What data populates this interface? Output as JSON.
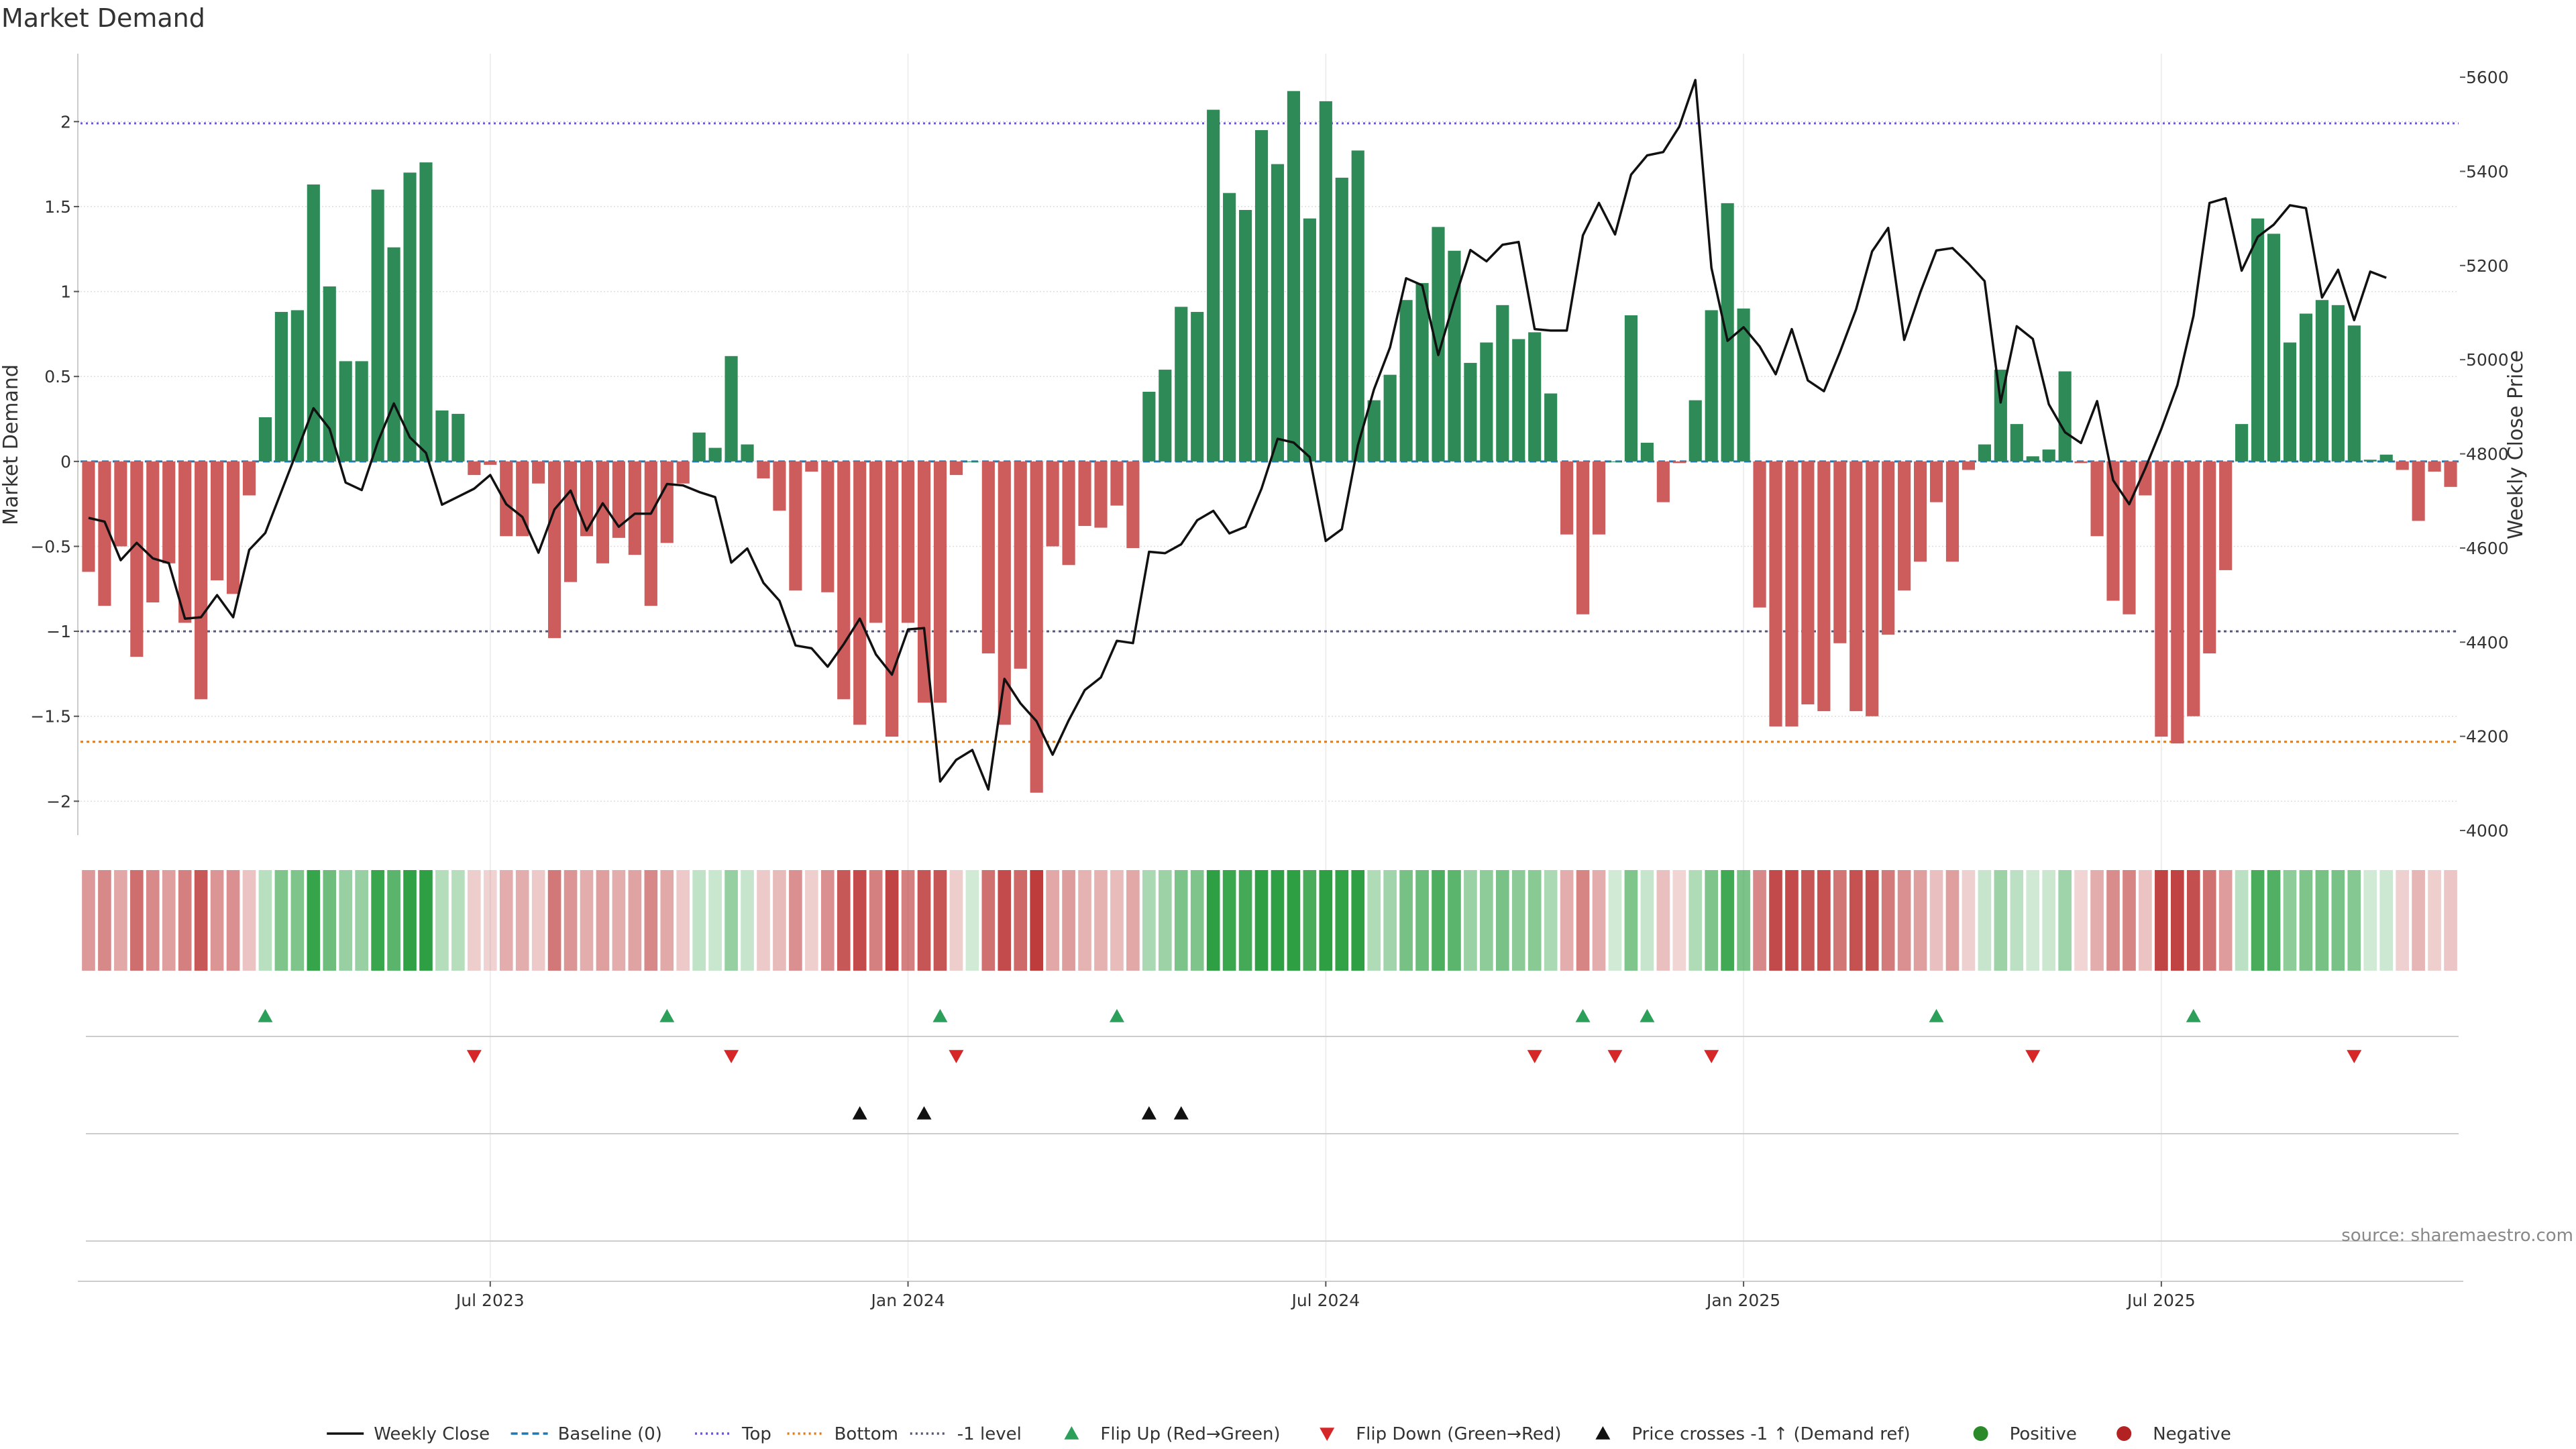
{
  "chart_data": {
    "type": "bar",
    "title": "Market Demand",
    "left_axis": {
      "label": "Market Demand",
      "ylim": [
        -2.2,
        2.4
      ],
      "ticks": [
        2,
        1.5,
        1,
        0.5,
        0,
        -0.5,
        -1,
        -1.5,
        -2
      ],
      "tick_labels": [
        "2",
        "1.5",
        "1",
        "0.5",
        "0",
        "−0.5",
        "−1",
        "−1.5",
        "−2"
      ]
    },
    "right_axis": {
      "label": "Weekly Close Price",
      "ylim": [
        3990,
        5650
      ],
      "ticks": [
        5600,
        5400,
        5200,
        5000,
        4800,
        4600,
        4400,
        4200,
        4000
      ],
      "tick_labels": [
        "5600",
        "5400",
        "5200",
        "5000",
        "4800",
        "4600",
        "4400",
        "4200",
        "4000"
      ]
    },
    "x_axis": {
      "type": "weekly",
      "first_week": "2023-01-06",
      "tick_week_index": [
        25,
        51,
        77,
        103,
        129
      ],
      "tick_labels": [
        "Jul 2023",
        "Jan 2024",
        "Jul 2024",
        "Jan 2025",
        "Jul 2025"
      ]
    },
    "reference_lines": {
      "top": 1.99,
      "bottom": -1.65,
      "minus_one": -1,
      "baseline": 0
    },
    "demand": [
      -0.65,
      -0.85,
      -0.5,
      -1.15,
      -0.83,
      -0.6,
      -0.95,
      -1.4,
      -0.7,
      -0.78,
      -0.2,
      0.26,
      0.88,
      0.89,
      1.63,
      1.03,
      0.59,
      0.59,
      1.6,
      1.26,
      1.7,
      1.76,
      0.3,
      0.28,
      -0.08,
      -0.02,
      -0.44,
      -0.44,
      -0.13,
      -1.04,
      -0.71,
      -0.44,
      -0.6,
      -0.45,
      -0.55,
      -0.85,
      -0.48,
      -0.13,
      0.17,
      0.08,
      0.62,
      0.1,
      -0.1,
      -0.29,
      -0.76,
      -0.06,
      -0.77,
      -1.4,
      -1.55,
      -0.95,
      -1.62,
      -0.95,
      -1.42,
      -1.42,
      -0.08,
      0,
      -1.13,
      -1.55,
      -1.22,
      -1.95,
      -0.5,
      -0.61,
      -0.38,
      -0.39,
      -0.26,
      -0.51,
      0.41,
      0.54,
      0.91,
      0.88,
      2.07,
      1.58,
      1.48,
      1.95,
      1.75,
      2.18,
      1.43,
      2.12,
      1.67,
      1.83,
      0.36,
      0.51,
      0.95,
      1.05,
      1.38,
      1.24,
      0.58,
      0.7,
      0.92,
      0.72,
      0.76,
      0.4,
      -0.43,
      -0.9,
      -0.43,
      0,
      0.86,
      0.11,
      -0.24,
      -0.01,
      0.36,
      0.89,
      1.52,
      0.9,
      -0.86,
      -1.56,
      -1.56,
      -1.43,
      -1.47,
      -1.07,
      -1.47,
      -1.5,
      -1.02,
      -0.76,
      -0.59,
      -0.24,
      -0.59,
      -0.05,
      0.1,
      0.54,
      0.22,
      0.03,
      0.07,
      0.53,
      -0.01,
      -0.44,
      -0.82,
      -0.9,
      -0.2,
      -1.62,
      -1.66,
      -1.5,
      -1.13,
      -0.64,
      0.22,
      1.43,
      1.34,
      0.7,
      0.87,
      0.95,
      0.92,
      0.8,
      0.01,
      0.04,
      -0.05,
      -0.35,
      -0.06,
      -0.15
    ],
    "price": [
      4664,
      4656,
      4574,
      4611,
      4578,
      4568,
      4450,
      4453,
      4500,
      4453,
      4596,
      4632,
      4720,
      4808,
      4897,
      4853,
      4739,
      4723,
      4825,
      4907,
      4835,
      4802,
      4692,
      4709,
      4726,
      4755,
      4693,
      4666,
      4590,
      4682,
      4722,
      4637,
      4695,
      4645,
      4673,
      4673,
      4736,
      4733,
      4719,
      4708,
      4569,
      4599,
      4526,
      4488,
      4393,
      4387,
      4348,
      4396,
      4450,
      4374,
      4331,
      4427,
      4430,
      4104,
      4150,
      4171,
      4087,
      4322,
      4270,
      4232,
      4161,
      4234,
      4298,
      4325,
      4403,
      4398,
      4592,
      4589,
      4608,
      4659,
      4679,
      4631,
      4645,
      4726,
      4832,
      4824,
      4793,
      4615,
      4640,
      4818,
      4937,
      5026,
      5173,
      5158,
      5010,
      5126,
      5233,
      5209,
      5244,
      5250,
      5065,
      5062,
      5062,
      5264,
      5333,
      5266,
      5393,
      5434,
      5441,
      5495,
      5594,
      5195,
      5040,
      5069,
      5028,
      4969,
      5065,
      4956,
      4933,
      5016,
      5107,
      5230,
      5280,
      5042,
      5143,
      5232,
      5237,
      5204,
      5167,
      4909,
      5071,
      5044,
      4905,
      4846,
      4823,
      4912,
      4744,
      4693,
      4769,
      4853,
      4946,
      5093,
      5333,
      5343,
      5189,
      5261,
      5287,
      5328,
      5322,
      5132,
      5191,
      5084,
      5187,
      5174
    ],
    "flip_up": [
      11,
      36,
      53,
      64,
      93,
      97,
      115,
      131
    ],
    "flip_down": [
      24,
      40,
      54,
      90,
      95,
      101,
      121,
      141
    ],
    "price_cross_up": [
      48,
      52,
      66,
      68
    ],
    "legend": [
      {
        "label": "Weekly Close",
        "kind": "line-solid",
        "color": "#111111"
      },
      {
        "label": "Baseline (0)",
        "kind": "line-dash",
        "color": "#1f77b4"
      },
      {
        "label": "Top",
        "kind": "line-dot",
        "color": "#6a5acd"
      },
      {
        "label": "Bottom",
        "kind": "line-dot",
        "color": "#e07b1a"
      },
      {
        "label": "-1 level",
        "kind": "line-dot",
        "color": "#555577"
      },
      {
        "label": "Flip Up (Red→Green)",
        "kind": "tri-up",
        "color": "#2ca05a"
      },
      {
        "label": "Flip Down (Green→Red)",
        "kind": "tri-down",
        "color": "#d62728"
      },
      {
        "label": "Price crosses -1 ↑ (Demand ref)",
        "kind": "tri-up",
        "color": "#111111"
      },
      {
        "label": "Positive",
        "kind": "dot",
        "color": "#2a8a2a"
      },
      {
        "label": "Negative",
        "kind": "dot",
        "color": "#b22222"
      }
    ]
  },
  "source_note": "source: sharemaestro.com",
  "colors": {
    "positive_bar": "#2e8b57",
    "negative_bar": "#cd5c5c",
    "price_line": "#111111",
    "grid": "#dddddd"
  }
}
